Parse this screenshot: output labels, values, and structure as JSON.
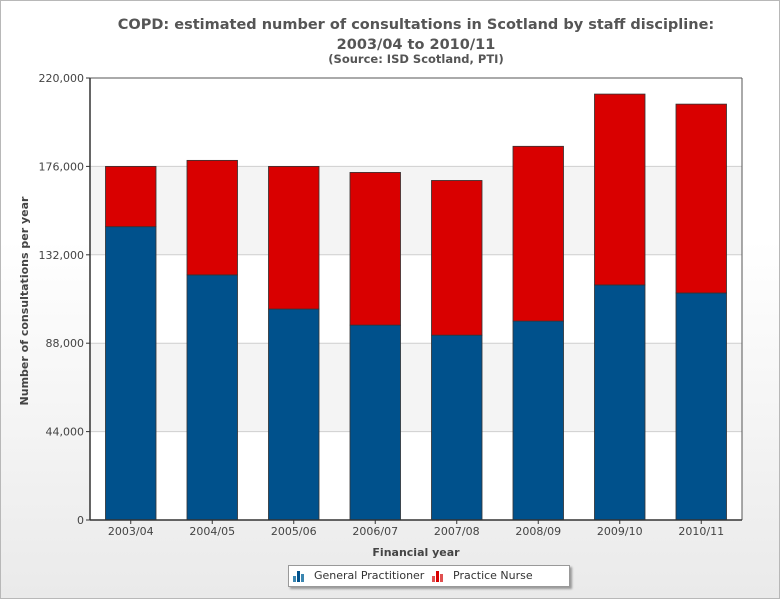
{
  "chart_data": {
    "type": "bar",
    "stacked": true,
    "title": "COPD: estimated number of consultations in Scotland by staff discipline: 2003/04 to 2010/11",
    "subtitle": "(Source: ISD Scotland, PTI)",
    "xlabel": "Financial year",
    "ylabel": "Number of consultations per year",
    "ylim": [
      0,
      220000
    ],
    "yticks": [
      "0",
      "44,000",
      "88,000",
      "132,000",
      "176,000",
      "220,000"
    ],
    "ytick_values": [
      0,
      44000,
      88000,
      132000,
      176000,
      220000
    ],
    "categories": [
      "2003/04",
      "2004/05",
      "2005/06",
      "2006/07",
      "2007/08",
      "2008/09",
      "2009/10",
      "2010/11"
    ],
    "series": [
      {
        "name": "General Practitioner",
        "color": "#00518c",
        "values": [
          146000,
          122000,
          105000,
          97000,
          92000,
          99000,
          117000,
          113000
        ]
      },
      {
        "name": "Practice Nurse",
        "color": "#d90000",
        "values": [
          30000,
          57000,
          71000,
          76000,
          77000,
          87000,
          95000,
          94000
        ]
      }
    ],
    "grid": true,
    "legend_position": "bottom"
  }
}
